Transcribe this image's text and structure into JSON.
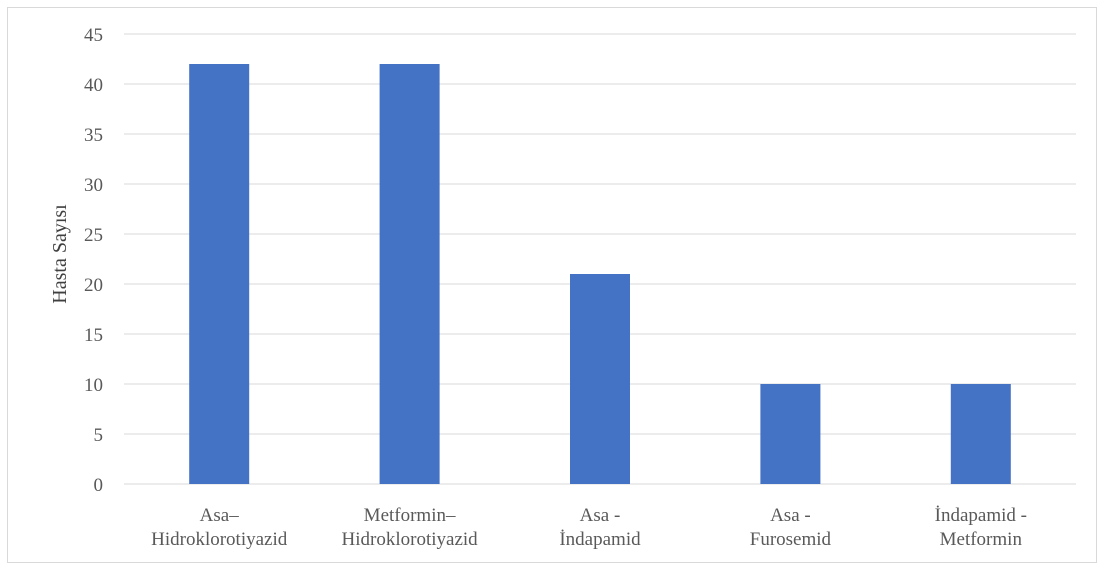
{
  "chart_data": {
    "type": "bar",
    "title": "",
    "xlabel": "",
    "ylabel": "Hasta Sayısı",
    "ylim": [
      0,
      45
    ],
    "yticks": [
      0,
      5,
      10,
      15,
      20,
      25,
      30,
      35,
      40,
      45
    ],
    "grid": true,
    "legend": "none",
    "bar_color": "#4472c4",
    "grid_color": "#d9d9d9",
    "categories": [
      [
        "Asa–",
        "Hidroklorotiyazid"
      ],
      [
        "Metformin–",
        "Hidroklorotiyazid"
      ],
      [
        "Asa -",
        "İndapamid"
      ],
      [
        "Asa -",
        "Furosemid"
      ],
      [
        "İndapamid -",
        "Metformin"
      ]
    ],
    "values": [
      42,
      42,
      21,
      10,
      10
    ]
  }
}
